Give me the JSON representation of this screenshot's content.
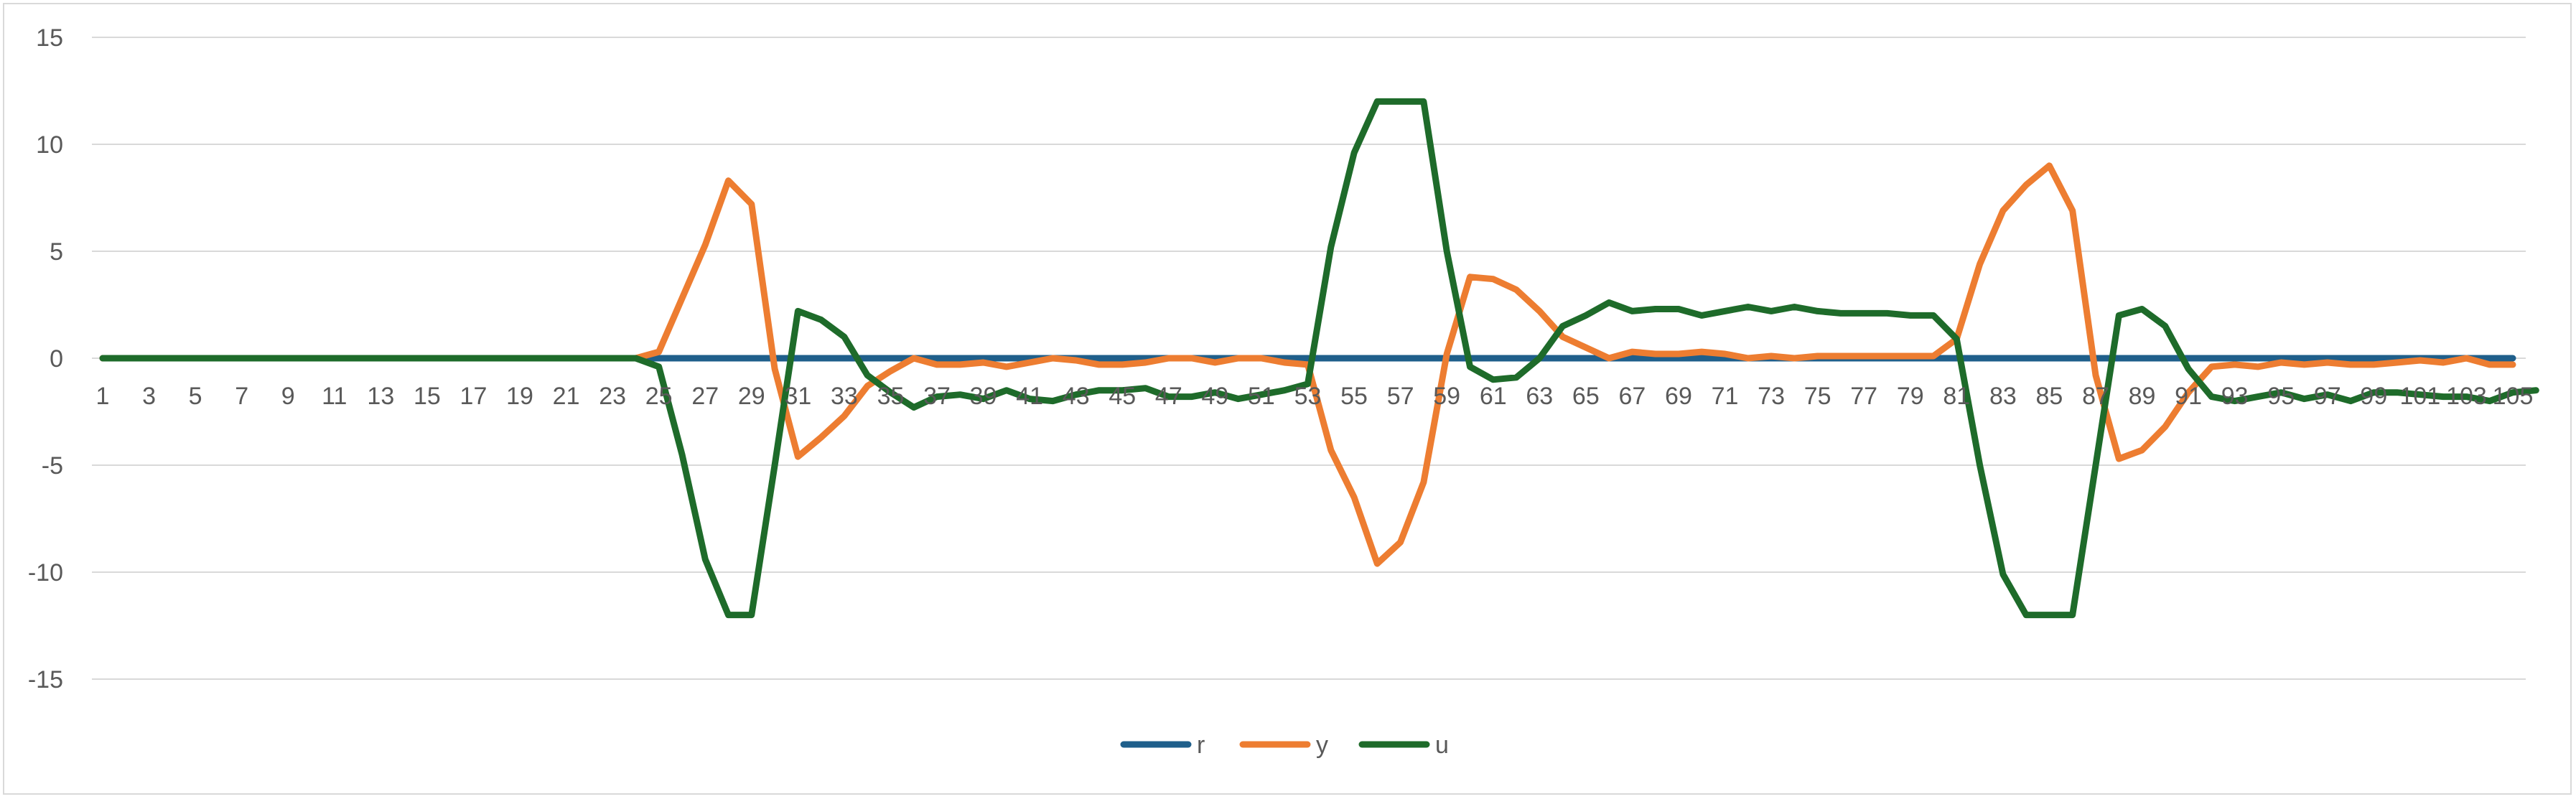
{
  "chart_data": {
    "type": "line",
    "title": "",
    "xlabel": "",
    "ylabel": "",
    "ylim": [
      -15,
      15
    ],
    "yticks": [
      15,
      10,
      5,
      0,
      -5,
      -10,
      -15
    ],
    "grid": true,
    "legend_position": "bottom",
    "x_start": 1,
    "x_end": 105,
    "x_tick_step": 2,
    "series": [
      {
        "name": "r",
        "color": "#1f5f8b",
        "values": [
          0,
          0,
          0,
          0,
          0,
          0,
          0,
          0,
          0,
          0,
          0,
          0,
          0,
          0,
          0,
          0,
          0,
          0,
          0,
          0,
          0,
          0,
          0,
          0,
          0,
          0,
          0,
          0,
          0,
          0,
          0,
          0,
          0,
          0,
          0,
          0,
          0,
          0,
          0,
          0,
          0,
          0,
          0,
          0,
          0,
          0,
          0,
          0,
          0,
          0,
          0,
          0,
          0,
          0,
          0,
          0,
          0,
          0,
          0,
          0,
          0,
          0,
          0,
          0,
          0,
          0,
          0,
          0,
          0,
          0,
          0,
          0,
          0,
          0,
          0,
          0,
          0,
          0,
          0,
          0,
          0,
          0,
          0,
          0,
          0,
          0,
          0,
          0,
          0,
          0,
          0,
          0,
          0,
          0,
          0,
          0,
          0,
          0,
          0,
          0,
          0,
          0,
          0,
          0,
          0
        ]
      },
      {
        "name": "y",
        "color": "#ed7d31",
        "values": [
          0,
          0,
          0,
          0,
          0,
          0,
          0,
          0,
          0,
          0,
          0,
          0,
          0,
          0,
          0,
          0,
          0,
          0,
          0,
          0,
          0,
          0,
          0,
          0,
          0.3,
          2.8,
          5.3,
          8.3,
          7.2,
          -0.5,
          -4.6,
          -3.7,
          -2.7,
          -1.3,
          -0.6,
          0,
          -0.3,
          -0.3,
          -0.2,
          -0.4,
          -0.2,
          0,
          -0.1,
          -0.3,
          -0.3,
          -0.2,
          0,
          0,
          -0.2,
          0,
          0,
          -0.2,
          -0.3,
          -4.3,
          -6.5,
          -9.6,
          -8.6,
          -5.8,
          0.2,
          3.8,
          3.7,
          3.2,
          2.2,
          1.0,
          0.5,
          0,
          0.3,
          0.2,
          0.2,
          0.3,
          0.2,
          0,
          0.1,
          0,
          0.1,
          0.1,
          0.1,
          0.1,
          0.1,
          0.1,
          0.9,
          4.4,
          6.9,
          8.1,
          9.0,
          6.9,
          -0.8,
          -4.7,
          -4.3,
          -3.2,
          -1.6,
          -0.4,
          -0.3,
          -0.4,
          -0.2,
          -0.3,
          -0.2,
          -0.3,
          -0.3,
          -0.2,
          -0.1,
          -0.2,
          0,
          -0.3,
          -0.3
        ]
      },
      {
        "name": "u",
        "color": "#1e6b2a",
        "values": [
          0,
          0,
          0,
          0,
          0,
          0,
          0,
          0,
          0,
          0,
          0,
          0,
          0,
          0,
          0,
          0,
          0,
          0,
          0,
          0,
          0,
          0,
          0,
          0,
          -0.4,
          -4.5,
          -9.4,
          -12,
          -12,
          -5.0,
          2.2,
          1.8,
          1.0,
          -0.8,
          -1.6,
          -2.3,
          -1.8,
          -1.7,
          -1.9,
          -1.5,
          -1.9,
          -2.0,
          -1.7,
          -1.5,
          -1.5,
          -1.4,
          -1.8,
          -1.8,
          -1.6,
          -1.9,
          -1.7,
          -1.5,
          -1.2,
          5.2,
          9.6,
          12,
          12,
          12,
          5.0,
          -0.4,
          -1.0,
          -0.9,
          0,
          1.5,
          2.0,
          2.6,
          2.2,
          2.3,
          2.3,
          2.0,
          2.2,
          2.4,
          2.2,
          2.4,
          2.2,
          2.1,
          2.1,
          2.1,
          2.0,
          2.0,
          0.9,
          -5.0,
          -10.1,
          -12,
          -12,
          -12,
          -5.0,
          2.0,
          2.3,
          1.5,
          -0.5,
          -1.8,
          -2.0,
          -1.8,
          -1.6,
          -1.9,
          -1.7,
          -2.0,
          -1.6,
          -1.6,
          -1.7,
          -1.8,
          -1.8,
          -2.0,
          -1.6,
          -1.5
        ]
      }
    ]
  }
}
